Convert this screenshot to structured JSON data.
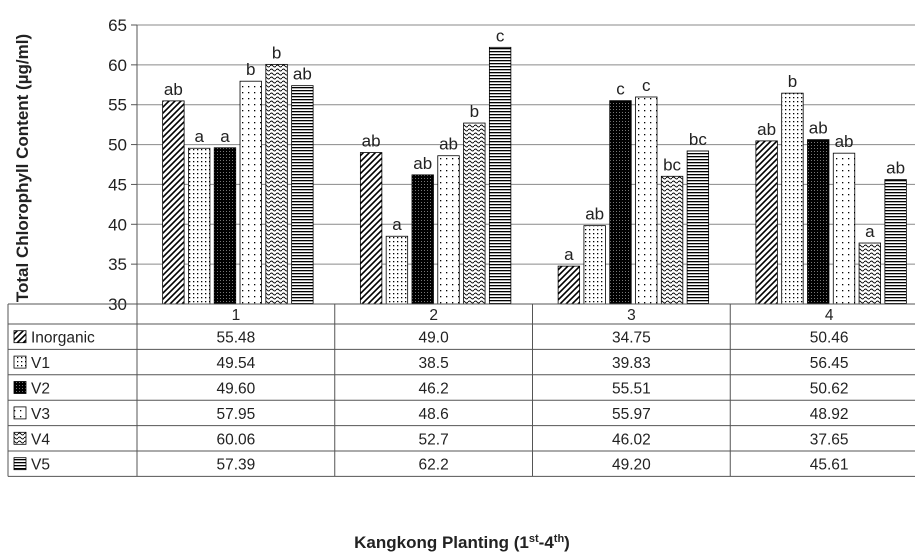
{
  "chart_data": {
    "type": "bar",
    "ylabel": "Total Chlorophyll Content (µg/ml)",
    "xlabel": "Kangkong Planting (1st-4th)",
    "xlabel_parts": {
      "main": "Kangkong Planting (1",
      "sup1": "st",
      "mid": "-4",
      "sup2": "th",
      "end": ")"
    },
    "ylim": [
      30,
      65
    ],
    "yticks": [
      30,
      35,
      40,
      45,
      50,
      55,
      60,
      65
    ],
    "grid": true,
    "categories": [
      "1",
      "2",
      "3",
      "4"
    ],
    "series": [
      {
        "name": "Inorganic",
        "pattern": "diag",
        "values": [
          55.48,
          49.0,
          34.75,
          50.46
        ],
        "display": [
          "55.48",
          "49.0",
          "34.75",
          "50.46"
        ],
        "letters": [
          "ab",
          "ab",
          "a",
          "ab"
        ]
      },
      {
        "name": "V1",
        "pattern": "dots",
        "values": [
          49.54,
          38.5,
          39.83,
          56.45
        ],
        "display": [
          "49.54",
          "38.5",
          "39.83",
          "56.45"
        ],
        "letters": [
          "a",
          "a",
          "ab",
          "b"
        ]
      },
      {
        "name": "V2",
        "pattern": "dense",
        "values": [
          49.6,
          46.2,
          55.51,
          50.62
        ],
        "display": [
          "49.60",
          "46.2",
          "55.51",
          "50.62"
        ],
        "letters": [
          "a",
          "ab",
          "c",
          "ab"
        ]
      },
      {
        "name": "V3",
        "pattern": "sparsedots",
        "values": [
          57.95,
          48.6,
          55.97,
          48.92
        ],
        "display": [
          "57.95",
          "48.6",
          "55.97",
          "48.92"
        ],
        "letters": [
          "b",
          "ab",
          "c",
          "ab"
        ]
      },
      {
        "name": "V4",
        "pattern": "wave",
        "values": [
          60.06,
          52.7,
          46.02,
          37.65
        ],
        "display": [
          "60.06",
          "52.7",
          "46.02",
          "37.65"
        ],
        "letters": [
          "b",
          "b",
          "bc",
          "a"
        ]
      },
      {
        "name": "V5",
        "pattern": "hlines",
        "values": [
          57.39,
          62.2,
          49.2,
          45.61
        ],
        "display": [
          "57.39",
          "62.2",
          "49.20",
          "45.61"
        ],
        "letters": [
          "ab",
          "c",
          "bc",
          "ab"
        ]
      }
    ]
  }
}
